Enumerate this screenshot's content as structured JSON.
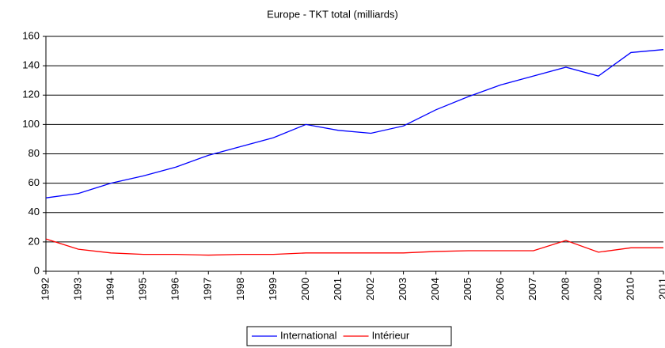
{
  "chart_data": {
    "type": "line",
    "title": "Europe - TKT total (milliards)",
    "categories": [
      "1992",
      "1993",
      "1994",
      "1995",
      "1996",
      "1997",
      "1998",
      "1999",
      "2000",
      "2001",
      "2002",
      "2003",
      "2004",
      "2005",
      "2006",
      "2007",
      "2008",
      "2009",
      "2010",
      "2011"
    ],
    "series": [
      {
        "name": "International",
        "color": "#0000ff",
        "values": [
          50,
          53,
          60,
          65,
          71,
          79,
          85,
          91,
          100,
          96,
          94,
          99,
          110,
          119,
          127,
          133,
          139,
          133,
          149,
          151
        ]
      },
      {
        "name": "Intérieur",
        "color": "#ff0000",
        "values": [
          22,
          15,
          12.5,
          11.5,
          11.5,
          11,
          11.5,
          11.5,
          12.5,
          12.5,
          12.5,
          12.5,
          13.5,
          14,
          14,
          14,
          21,
          13,
          16,
          16
        ]
      }
    ],
    "ylim": [
      0,
      160
    ],
    "yticks": [
      0,
      20,
      40,
      60,
      80,
      100,
      120,
      140,
      160
    ],
    "grid": true,
    "legend": "bottom"
  }
}
